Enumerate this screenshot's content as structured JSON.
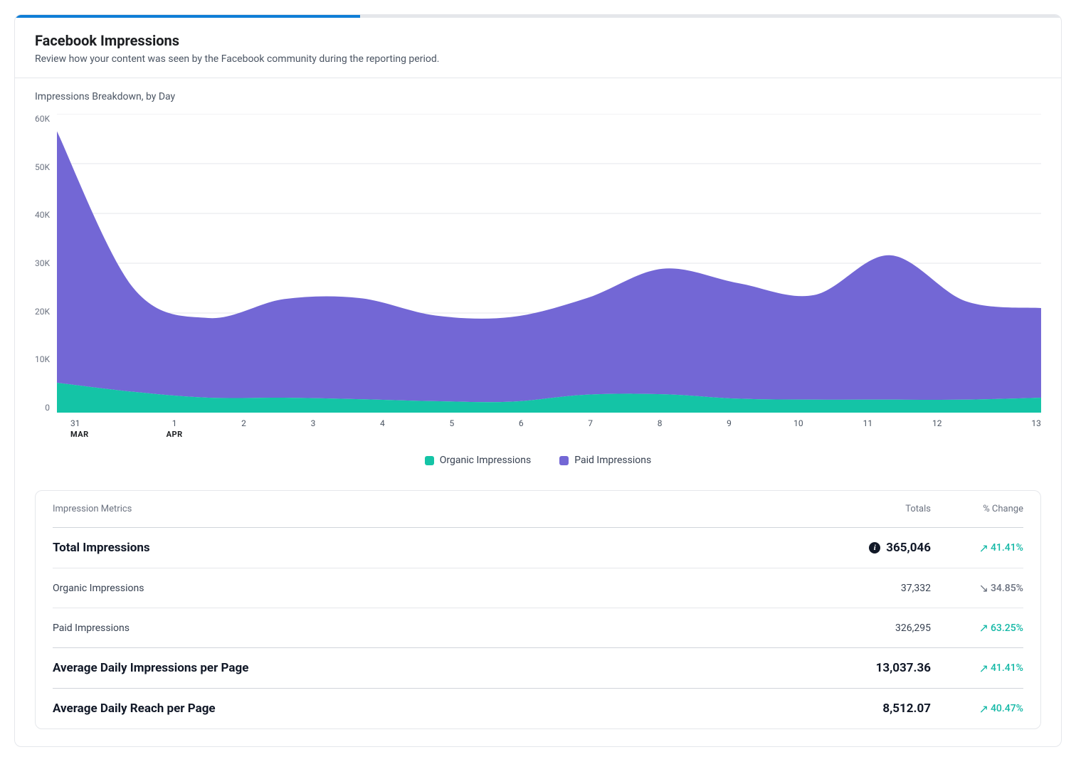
{
  "progress_pct": 33,
  "header": {
    "title": "Facebook Impressions",
    "subtitle": "Review how your content was seen by the Facebook community during the reporting period."
  },
  "chart": {
    "title": "Impressions Breakdown, by Day",
    "type": "stacked-area",
    "ylim": [
      0,
      60000
    ],
    "ytick_step": 10000,
    "yticks": [
      "60K",
      "50K",
      "40K",
      "30K",
      "20K",
      "10K",
      "0"
    ],
    "grid_color": "#e5e7eb",
    "background_color": "#ffffff",
    "x_labels": [
      {
        "day": "31",
        "month": "MAR"
      },
      {
        "day": "1",
        "month": "APR"
      },
      {
        "day": "2",
        "month": ""
      },
      {
        "day": "3",
        "month": ""
      },
      {
        "day": "4",
        "month": ""
      },
      {
        "day": "5",
        "month": ""
      },
      {
        "day": "6",
        "month": ""
      },
      {
        "day": "7",
        "month": ""
      },
      {
        "day": "8",
        "month": ""
      },
      {
        "day": "9",
        "month": ""
      },
      {
        "day": "10",
        "month": ""
      },
      {
        "day": "11",
        "month": ""
      },
      {
        "day": "12",
        "month": ""
      },
      {
        "day": "13",
        "month": ""
      }
    ],
    "series": [
      {
        "name": "Organic Impressions",
        "color": "#14c4a6",
        "values": [
          6000,
          4200,
          3000,
          3000,
          2700,
          2300,
          2200,
          3600,
          3700,
          2800,
          2600,
          2600,
          2600,
          3000
        ]
      },
      {
        "name": "Paid Impressions",
        "color": "#7367d5",
        "values": [
          50500,
          21000,
          16000,
          19800,
          20300,
          17200,
          17000,
          19400,
          25200,
          23200,
          21000,
          29000,
          19800,
          18000
        ]
      }
    ],
    "legend_labels": {
      "organic": "Organic Impressions",
      "paid": "Paid Impressions"
    }
  },
  "metrics": {
    "header_labels": {
      "metric": "Impression Metrics",
      "totals": "Totals",
      "change": "% Change"
    },
    "rows": [
      {
        "label": "Total Impressions",
        "total": "365,046",
        "change": "41.41%",
        "direction": "up",
        "major": true,
        "info": true
      },
      {
        "label": "Organic Impressions",
        "total": "37,332",
        "change": "34.85%",
        "direction": "down",
        "major": false,
        "info": false
      },
      {
        "label": "Paid Impressions",
        "total": "326,295",
        "change": "63.25%",
        "direction": "up",
        "major": false,
        "info": false
      },
      {
        "label": "Average Daily Impressions per Page",
        "total": "13,037.36",
        "change": "41.41%",
        "direction": "up",
        "major": true,
        "info": false
      },
      {
        "label": "Average Daily Reach per Page",
        "total": "8,512.07",
        "change": "40.47%",
        "direction": "up",
        "major": true,
        "info": false
      }
    ]
  },
  "colors": {
    "accent_up": "#14b8a6",
    "accent_down": "#6b7280",
    "progress": "#0f7ed6"
  }
}
